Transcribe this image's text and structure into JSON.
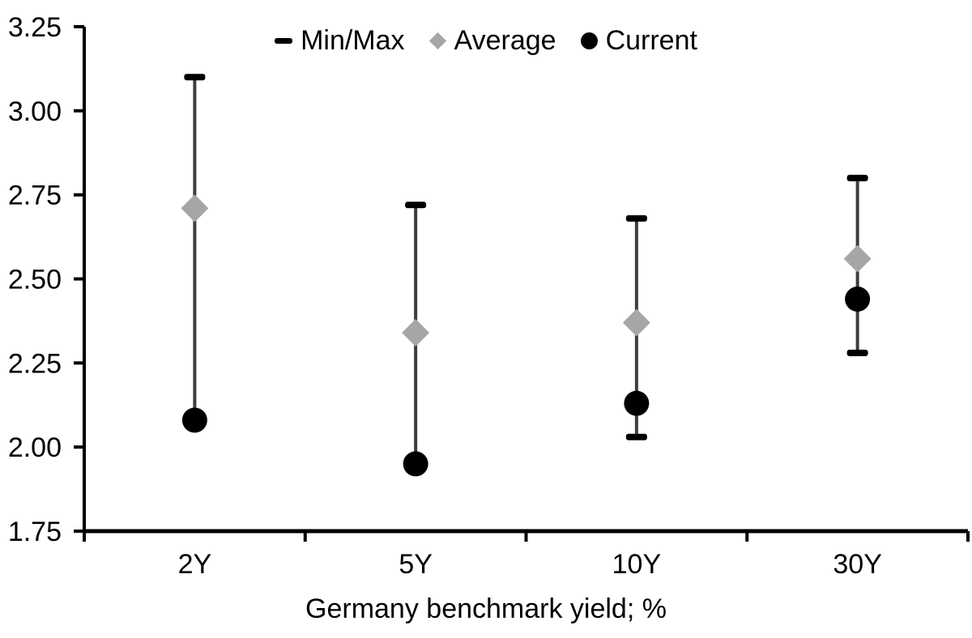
{
  "chart_data": {
    "type": "scatter",
    "subtype": "min-max-range-with-markers",
    "title": "",
    "xlabel": "Germany benchmark yield; %",
    "ylabel": "",
    "ylim": [
      1.75,
      3.25
    ],
    "ytick_step": 0.25,
    "ytick_labels": [
      "3.25",
      "3.00",
      "2.75",
      "2.50",
      "2.25",
      "2.00",
      "1.75"
    ],
    "categories": [
      "2Y",
      "5Y",
      "10Y",
      "30Y"
    ],
    "legend": [
      "Min/Max",
      "Average",
      "Current"
    ],
    "legend_position": "top-center",
    "grid": false,
    "series": [
      {
        "name": "Min/Max",
        "marker": "error-bar",
        "min": [
          2.08,
          1.95,
          2.03,
          2.28
        ],
        "max": [
          3.1,
          2.72,
          2.68,
          2.8
        ]
      },
      {
        "name": "Average",
        "marker": "diamond",
        "values": [
          2.71,
          2.34,
          2.37,
          2.56
        ]
      },
      {
        "name": "Current",
        "marker": "circle",
        "values": [
          2.08,
          1.95,
          2.13,
          2.44
        ]
      }
    ],
    "colors": {
      "errorbar_line": "#3d3d3d",
      "errorbar_cap": "#000000",
      "average": "#a6a6a6",
      "current": "#000000",
      "axis": "#000000",
      "text": "#000000",
      "background": "#ffffff"
    }
  }
}
